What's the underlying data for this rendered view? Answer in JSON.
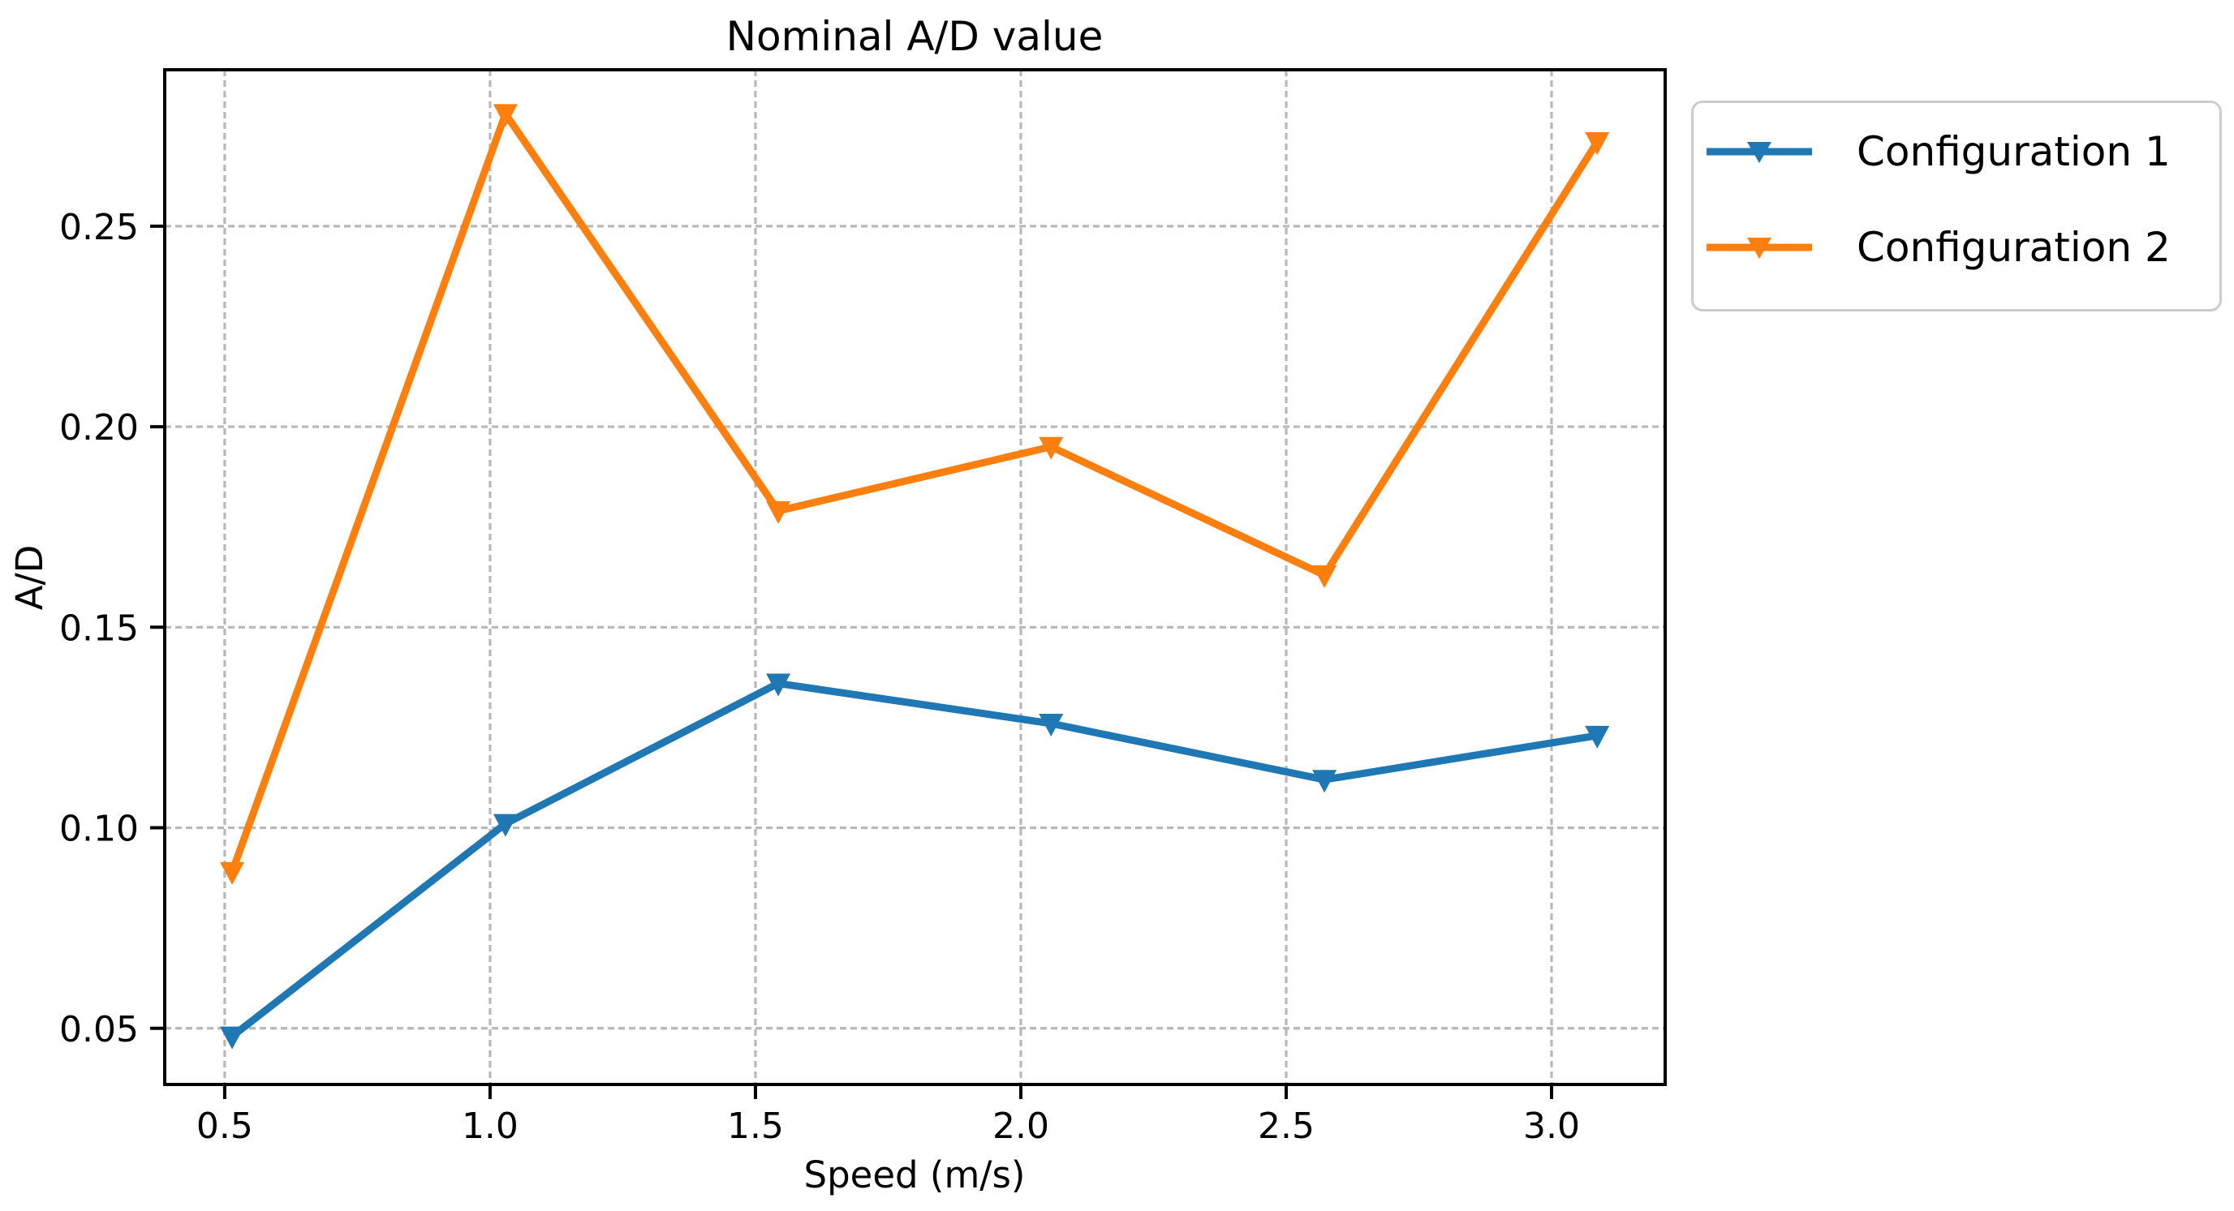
{
  "chart_data": {
    "type": "line",
    "title": "Nominal A/D value",
    "xlabel": "Speed (m/s)",
    "ylabel": "A/D",
    "x": [
      0.514,
      1.029,
      1.543,
      2.057,
      2.572,
      3.086
    ],
    "series": [
      {
        "name": "Configuration 1",
        "color": "#1f77b4",
        "marker": "triangle-down",
        "values": [
          0.048,
          0.101,
          0.136,
          0.126,
          0.112,
          0.123
        ]
      },
      {
        "name": "Configuration 2",
        "color": "#ff7f0e",
        "marker": "triangle-down",
        "values": [
          0.089,
          0.278,
          0.179,
          0.195,
          0.163,
          0.271
        ]
      }
    ],
    "xlim": [
      0.387,
      3.214
    ],
    "ylim": [
      0.036,
      0.289
    ],
    "x_ticks": [
      0.5,
      1.0,
      1.5,
      2.0,
      2.5,
      3.0
    ],
    "x_tick_labels": [
      "0.5",
      "1.0",
      "1.5",
      "2.0",
      "2.5",
      "3.0"
    ],
    "y_ticks": [
      0.05,
      0.1,
      0.15,
      0.2,
      0.25
    ],
    "y_tick_labels": [
      "0.05",
      "0.10",
      "0.15",
      "0.20",
      "0.25"
    ],
    "grid": true,
    "grid_color": "#b8b8b8",
    "grid_style": "dashed",
    "spine_color": "#000000",
    "text_color": "#000000",
    "legend": {
      "position": "upper-right-outside",
      "border_color": "#cccccc",
      "entries": [
        "Configuration 1",
        "Configuration 2"
      ]
    }
  }
}
